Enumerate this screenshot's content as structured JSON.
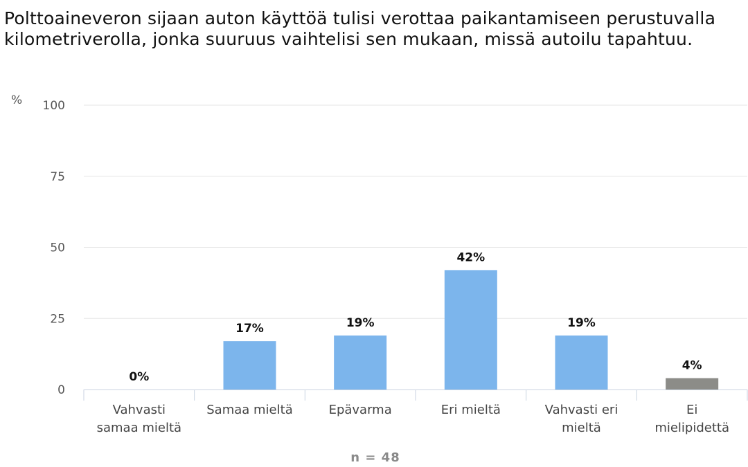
{
  "chart_data": {
    "type": "bar",
    "title": "Polttoaineveron sijaan auton käyttöä tulisi verottaa paikantamiseen perustuvalla kilometriverolla, jonka suuruus vaihtelisi sen mukaan, missä autoilu tapahtuu.",
    "ylabel": "%",
    "ylim": [
      0,
      100
    ],
    "yticks": [
      0,
      25,
      50,
      75,
      100
    ],
    "grid": true,
    "categories": [
      "Vahvasti samaa mieltä",
      "Samaa mieltä",
      "Epävarma",
      "Eri mieltä",
      "Vahvasti eri mieltä",
      "Ei mielipidettä"
    ],
    "values": [
      0,
      17,
      19,
      42,
      19,
      4
    ],
    "data_labels": [
      "0%",
      "17%",
      "19%",
      "42%",
      "19%",
      "4%"
    ],
    "colors": [
      "#7cb5ec",
      "#7cb5ec",
      "#7cb5ec",
      "#7cb5ec",
      "#7cb5ec",
      "#8c8c88"
    ],
    "footnote": "n = 48"
  }
}
